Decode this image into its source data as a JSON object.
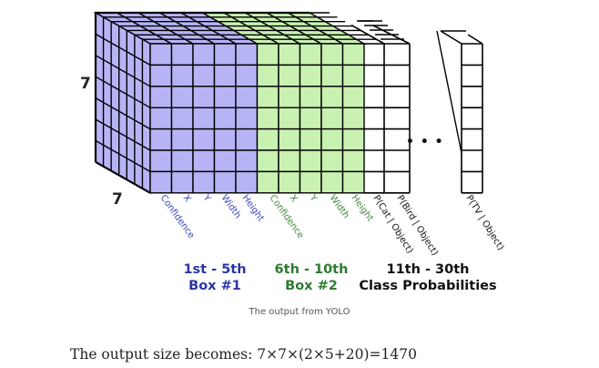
{
  "diagram": {
    "grid_size_label": "7",
    "depth_label": "7",
    "ellipsis": "• • •",
    "channel_labels": {
      "box1": [
        "Confidence",
        "X",
        "Y",
        "Width",
        "Height"
      ],
      "box2": [
        "Confidence",
        "X",
        "Y",
        "Width",
        "Height"
      ],
      "classes": [
        "P(Cat | Object)",
        "P(Bird | Object)",
        "P(TV | Object)"
      ]
    },
    "groups": [
      {
        "line1": "1st - 5th",
        "line2": "Box #1",
        "color": "#2a35a8"
      },
      {
        "line1": "6th - 10th",
        "line2": "Box #2",
        "color": "#2f7a33"
      },
      {
        "line1": "11th - 30th",
        "line2": "Class Probabilities",
        "color": "#111111"
      }
    ],
    "colors": {
      "box1_fill": "#b7b4f6",
      "box2_fill": "#c9f2b2",
      "class_fill": "#ffffff",
      "box1_label": "#3a46c0",
      "box2_label": "#3e8a3a",
      "grid": "#000000"
    }
  },
  "caption": "The output from YOLO",
  "formula": "The output size becomes: 7×7×(2×5+20)=1470"
}
